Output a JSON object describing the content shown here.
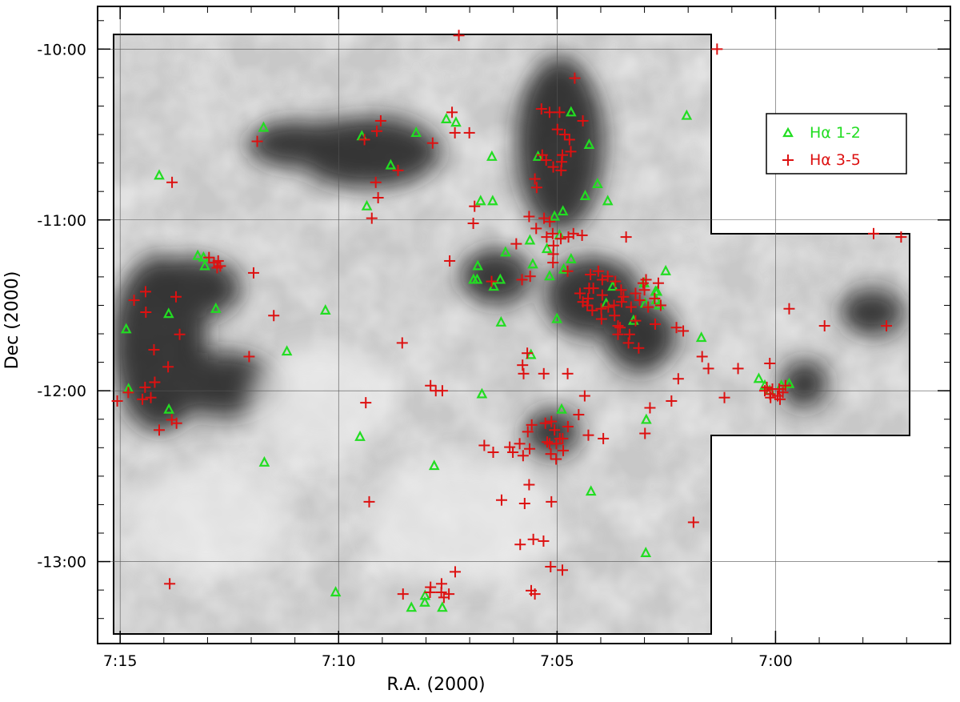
{
  "chart_data": {
    "type": "scatter",
    "title": "",
    "xlabel": "R.A. (2000)",
    "ylabel": "Dec (2000)",
    "x_axis_reversed": true,
    "xlim_hours": [
      7.2586,
      6.9333
    ],
    "ylim_deg": [
      -13.48,
      -9.75
    ],
    "x_ticks": [
      {
        "label": "7:15",
        "value": 7.25
      },
      {
        "label": "7:10",
        "value": 7.16667
      },
      {
        "label": "7:05",
        "value": 7.08333
      },
      {
        "label": "7:00",
        "value": 7.0
      }
    ],
    "y_ticks": [
      {
        "label": "-10:00",
        "value": -10.0
      },
      {
        "label": "-11:00",
        "value": -11.0
      },
      {
        "label": "-12:00",
        "value": -12.0
      },
      {
        "label": "-13:00",
        "value": -13.0
      }
    ],
    "grid": true,
    "background": "grayscale extinction map (darker = higher extinction) inside the surveyed region outline",
    "legend": {
      "placement": "top-right",
      "entries": [
        {
          "symbol": "triangle",
          "color": "#22dd22",
          "label_main": "H",
          "label_greek": "α",
          "label_rest": " 1-2"
        },
        {
          "symbol": "plus",
          "color": "#dd1111",
          "label_main": "H",
          "label_greek": "α",
          "label_rest": " 3-5"
        }
      ]
    },
    "series": [
      {
        "name": "Hα 1-2",
        "marker": "triangle",
        "color": "#22dd22",
        "points": [
          [
            7.2477,
            -11.64
          ],
          [
            7.2351,
            -10.74
          ],
          [
            7.2315,
            -11.55
          ],
          [
            7.2204,
            -11.21
          ],
          [
            7.2182,
            -11.22
          ],
          [
            7.2177,
            -11.27
          ],
          [
            7.2135,
            -11.52
          ],
          [
            7.1953,
            -10.46
          ],
          [
            7.1864,
            -11.77
          ],
          [
            7.1717,
            -11.53
          ],
          [
            7.1578,
            -10.51
          ],
          [
            7.1559,
            -10.92
          ],
          [
            7.1468,
            -10.68
          ],
          [
            7.1371,
            -10.49
          ],
          [
            7.1256,
            -10.41
          ],
          [
            7.1219,
            -10.43
          ],
          [
            7.1138,
            -11.35
          ],
          [
            7.1136,
            -11.27
          ],
          [
            7.1075,
            -11.39
          ],
          [
            7.105,
            -11.35
          ],
          [
            7.1079,
            -10.89
          ],
          [
            7.103,
            -11.19
          ],
          [
            7.0937,
            -11.12
          ],
          [
            7.0926,
            -11.26
          ],
          [
            7.0906,
            -10.63
          ],
          [
            7.0862,
            -11.33
          ],
          [
            7.0872,
            -11.17
          ],
          [
            7.0824,
            -11.09
          ],
          [
            7.0811,
            -10.95
          ],
          [
            7.0843,
            -10.98
          ],
          [
            7.0808,
            -11.29
          ],
          [
            7.078,
            -11.23
          ],
          [
            7.0834,
            -11.58
          ],
          [
            7.078,
            -10.37
          ],
          [
            7.0726,
            -10.86
          ],
          [
            7.0711,
            -10.56
          ],
          [
            7.0679,
            -10.79
          ],
          [
            7.0621,
            -11.39
          ],
          [
            7.0646,
            -11.49
          ],
          [
            7.0542,
            -11.59
          ],
          [
            7.0501,
            -11.37
          ],
          [
            7.0458,
            -11.42
          ],
          [
            7.0497,
            -11.49
          ],
          [
            7.0455,
            -11.47
          ],
          [
            7.0452,
            -11.42
          ],
          [
            7.0444,
            -11.5
          ],
          [
            7.0419,
            -11.3
          ],
          [
            7.0283,
            -11.69
          ],
          [
            7.0339,
            -10.39
          ],
          [
            7.064,
            -10.89
          ],
          [
            7.0041,
            -11.97
          ],
          [
            7.0064,
            -11.93
          ],
          [
            6.9948,
            -11.96
          ],
          [
            7.0022,
            -12.0
          ],
          [
            6.9978,
            -11.97
          ],
          [
            7.2468,
            -11.99
          ],
          [
            7.2314,
            -12.11
          ],
          [
            7.195,
            -12.42
          ],
          [
            7.1678,
            -13.18
          ],
          [
            7.1585,
            -12.27
          ],
          [
            7.1302,
            -12.44
          ],
          [
            7.112,
            -12.02
          ],
          [
            7.1047,
            -11.6
          ],
          [
            7.0933,
            -11.79
          ],
          [
            7.0816,
            -12.11
          ],
          [
            7.0704,
            -12.59
          ],
          [
            7.0493,
            -12.17
          ],
          [
            7.0495,
            -12.95
          ],
          [
            7.1389,
            -13.27
          ],
          [
            7.1337,
            -13.2
          ],
          [
            7.1271,
            -13.27
          ],
          [
            7.1338,
            -13.24
          ],
          [
            7.1125,
            -10.89
          ],
          [
            7.1082,
            -10.63
          ],
          [
            7.1152,
            -11.35
          ]
        ]
      },
      {
        "name": "Hα 3-5",
        "marker": "plus",
        "color": "#dd1111",
        "points": [
          [
            7.1208,
            -9.92
          ],
          [
            7.0223,
            -10.0
          ],
          [
            7.0766,
            -10.17
          ],
          [
            7.0893,
            -10.35
          ],
          [
            7.0862,
            -10.37
          ],
          [
            7.0824,
            -10.37
          ],
          [
            7.0735,
            -10.42
          ],
          [
            7.0832,
            -10.47
          ],
          [
            7.0804,
            -10.5
          ],
          [
            7.0786,
            -10.53
          ],
          [
            7.0781,
            -10.6
          ],
          [
            7.0813,
            -10.62
          ],
          [
            7.0816,
            -10.66
          ],
          [
            7.089,
            -10.62
          ],
          [
            7.0875,
            -10.65
          ],
          [
            7.0848,
            -10.69
          ],
          [
            7.0818,
            -10.71
          ],
          [
            7.0918,
            -10.76
          ],
          [
            7.0911,
            -10.81
          ],
          [
            7.094,
            -10.98
          ],
          [
            7.0883,
            -10.99
          ],
          [
            7.0861,
            -11.01
          ],
          [
            7.0913,
            -11.05
          ],
          [
            7.0873,
            -11.1
          ],
          [
            7.085,
            -11.08
          ],
          [
            7.0819,
            -11.11
          ],
          [
            7.079,
            -11.1
          ],
          [
            7.0771,
            -11.08
          ],
          [
            7.0738,
            -11.09
          ],
          [
            7.0847,
            -11.15
          ],
          [
            7.0848,
            -11.2
          ],
          [
            7.0849,
            -11.25
          ],
          [
            7.0793,
            -11.3
          ],
          [
            7.0706,
            -11.32
          ],
          [
            7.0695,
            -11.4
          ],
          [
            7.0676,
            -11.3
          ],
          [
            7.0661,
            -11.35
          ],
          [
            7.064,
            -11.33
          ],
          [
            7.0611,
            -11.36
          ],
          [
            7.0589,
            -11.41
          ],
          [
            7.0661,
            -11.44
          ],
          [
            7.0715,
            -11.46
          ],
          [
            7.0735,
            -11.48
          ],
          [
            7.0699,
            -11.53
          ],
          [
            7.0665,
            -11.52
          ],
          [
            7.0638,
            -11.51
          ],
          [
            7.0616,
            -11.5
          ],
          [
            7.0587,
            -11.48
          ],
          [
            7.0551,
            -11.51
          ],
          [
            7.0534,
            -11.59
          ],
          [
            7.0601,
            -11.62
          ],
          [
            7.0614,
            -11.56
          ],
          [
            7.0664,
            -11.58
          ],
          [
            7.0557,
            -11.67
          ],
          [
            7.0593,
            -11.63
          ],
          [
            7.0561,
            -11.72
          ],
          [
            7.0718,
            -11.5
          ],
          [
            7.0711,
            -11.4
          ],
          [
            7.0746,
            -11.43
          ],
          [
            7.058,
            -11.45
          ],
          [
            7.0505,
            -11.37
          ],
          [
            7.0461,
            -11.46
          ],
          [
            7.0438,
            -11.5
          ],
          [
            7.0447,
            -11.37
          ],
          [
            7.057,
            -11.1
          ],
          [
            7.0522,
            -11.75
          ],
          [
            7.0459,
            -11.61
          ],
          [
            7.0378,
            -11.63
          ],
          [
            7.0371,
            -11.93
          ],
          [
            7.0397,
            -12.06
          ],
          [
            7.0195,
            -12.04
          ],
          [
            7.0256,
            -11.87
          ],
          [
            7.0033,
            -11.98
          ],
          [
            7.0021,
            -12.02
          ],
          [
            7.0012,
            -11.99
          ],
          [
            6.9992,
            -12.03
          ],
          [
            6.9986,
            -11.99
          ],
          [
            7.0019,
            -12.04
          ],
          [
            7.0041,
            -12.0
          ],
          [
            6.9983,
            -12.05
          ],
          [
            6.9972,
            -12.01
          ],
          [
            6.9962,
            -11.97
          ],
          [
            7.0022,
            -11.84
          ],
          [
            6.9948,
            -11.52
          ],
          [
            6.9813,
            -11.62
          ],
          [
            6.9626,
            -11.08
          ],
          [
            6.9521,
            -11.1
          ],
          [
            6.9577,
            -11.62
          ],
          [
            7.2447,
            -11.47
          ],
          [
            7.2402,
            -11.54
          ],
          [
            7.2403,
            -11.42
          ],
          [
            7.2371,
            -11.76
          ],
          [
            7.2287,
            -11.45
          ],
          [
            7.2273,
            -11.67
          ],
          [
            7.2317,
            -11.86
          ],
          [
            7.2161,
            -11.22
          ],
          [
            7.2142,
            -11.25
          ],
          [
            7.213,
            -11.28
          ],
          [
            7.2118,
            -11.27
          ],
          [
            7.2126,
            -11.24
          ],
          [
            7.2008,
            -11.8
          ],
          [
            7.1914,
            -11.56
          ],
          [
            7.1977,
            -10.54
          ],
          [
            7.1991,
            -11.31
          ],
          [
            7.2302,
            -10.78
          ],
          [
            7.2405,
            -11.98
          ],
          [
            7.2383,
            -12.04
          ],
          [
            7.2415,
            -12.05
          ],
          [
            7.2368,
            -11.95
          ],
          [
            7.2511,
            -12.06
          ],
          [
            7.2469,
            -12.01
          ],
          [
            7.2351,
            -12.23
          ],
          [
            7.2303,
            -12.17
          ],
          [
            7.2285,
            -12.19
          ],
          [
            7.1568,
            -10.53
          ],
          [
            7.1521,
            -10.48
          ],
          [
            7.1506,
            -10.42
          ],
          [
            7.1525,
            -10.78
          ],
          [
            7.1516,
            -10.87
          ],
          [
            7.154,
            -10.99
          ],
          [
            7.144,
            -10.71
          ],
          [
            7.1308,
            -10.55
          ],
          [
            7.1234,
            -10.37
          ],
          [
            7.1223,
            -10.49
          ],
          [
            7.1168,
            -10.49
          ],
          [
            7.1148,
            -10.92
          ],
          [
            7.1153,
            -11.02
          ],
          [
            7.1243,
            -11.24
          ],
          [
            7.1083,
            -11.36
          ],
          [
            7.0967,
            -11.35
          ],
          [
            7.0989,
            -11.14
          ],
          [
            7.0936,
            -11.33
          ],
          [
            7.1563,
            -12.07
          ],
          [
            7.155,
            -12.65
          ],
          [
            7.1424,
            -11.72
          ],
          [
            7.1316,
            -11.97
          ],
          [
            7.1296,
            -12.0
          ],
          [
            7.1271,
            -12.0
          ],
          [
            7.1111,
            -12.32
          ],
          [
            7.1077,
            -12.36
          ],
          [
            7.1014,
            -12.33
          ],
          [
            7.1002,
            -12.36
          ],
          [
            7.0963,
            -12.38
          ],
          [
            7.0976,
            -12.31
          ],
          [
            7.0938,
            -12.34
          ],
          [
            7.0945,
            -12.24
          ],
          [
            7.093,
            -12.2
          ],
          [
            7.0878,
            -12.19
          ],
          [
            7.0855,
            -12.18
          ],
          [
            7.0843,
            -12.23
          ],
          [
            7.0823,
            -12.28
          ],
          [
            7.0836,
            -12.31
          ],
          [
            7.0871,
            -12.3
          ],
          [
            7.0857,
            -12.37
          ],
          [
            7.0837,
            -12.4
          ],
          [
            7.081,
            -12.35
          ],
          [
            7.0792,
            -12.21
          ],
          [
            7.0751,
            -12.14
          ],
          [
            7.0714,
            -12.26
          ],
          [
            7.0812,
            -12.28
          ],
          [
            7.0862,
            -12.31
          ],
          [
            7.0728,
            -12.03
          ],
          [
            7.0657,
            -12.28
          ],
          [
            7.0498,
            -12.25
          ],
          [
            7.0479,
            -12.1
          ],
          [
            7.094,
            -12.55
          ],
          [
            7.0957,
            -12.66
          ],
          [
            7.0855,
            -12.65
          ],
          [
            7.1045,
            -12.64
          ],
          [
            7.0974,
            -12.9
          ],
          [
            7.0924,
            -12.87
          ],
          [
            7.0885,
            -12.88
          ],
          [
            7.0858,
            -13.03
          ],
          [
            7.1222,
            -13.06
          ],
          [
            7.1274,
            -13.13
          ],
          [
            7.1316,
            -13.15
          ],
          [
            7.1246,
            -13.19
          ],
          [
            7.1318,
            -13.18
          ],
          [
            7.1275,
            -13.18
          ],
          [
            7.1265,
            -13.21
          ],
          [
            7.1421,
            -13.19
          ],
          [
            7.2311,
            -13.13
          ],
          [
            7.0932,
            -13.17
          ],
          [
            7.0918,
            -13.19
          ],
          [
            7.0813,
            -13.05
          ],
          [
            7.0947,
            -11.78
          ],
          [
            7.0965,
            -11.85
          ],
          [
            7.0961,
            -11.9
          ],
          [
            7.0884,
            -11.9
          ],
          [
            7.0793,
            -11.9
          ],
          [
            7.0313,
            -12.77
          ],
          [
            7.0143,
            -11.87
          ],
          [
            7.028,
            -11.8
          ],
          [
            7.0352,
            -11.65
          ],
          [
            7.0486,
            -11.51
          ],
          [
            7.05,
            -11.41
          ],
          [
            7.0518,
            -11.47
          ],
          [
            7.0494,
            -11.35
          ],
          [
            7.0534,
            -11.43
          ],
          [
            7.0601,
            -11.67
          ]
        ]
      }
    ]
  }
}
